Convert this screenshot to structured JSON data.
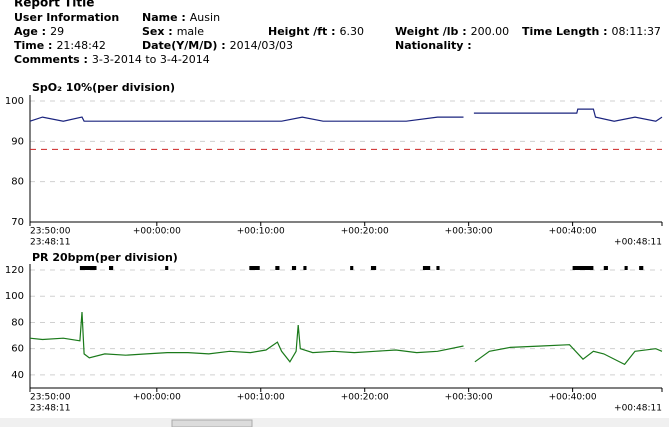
{
  "report": {
    "title": "Report Title",
    "section": "User Information",
    "fields": [
      {
        "label": "Name :",
        "value": "Ausin"
      },
      {
        "label": "Age :",
        "value": "29"
      },
      {
        "label": "Sex :",
        "value": "male"
      },
      {
        "label": "Height /ft :",
        "value": "6.30"
      },
      {
        "label": "Weight /lb :",
        "value": "200.00"
      },
      {
        "label": "Time Length :",
        "value": "08:11:37"
      },
      {
        "label": "Time :",
        "value": "21:48:42"
      },
      {
        "label": "Date(Y/M/D) :",
        "value": "2014/03/03"
      },
      {
        "label": "Nationality :"
      },
      {
        "label": "Comments :",
        "value": "3-3-2014 to 3-4-2014"
      }
    ]
  },
  "chart_data": [
    {
      "type": "line",
      "title": "SpO₂   10%(per division)",
      "x": [
        -12.2,
        -11,
        -9,
        -7.2,
        -7,
        -5,
        -3,
        0,
        3,
        6,
        9,
        12,
        14,
        16,
        18,
        21,
        24,
        27,
        29.5,
        30,
        30.5,
        33,
        36,
        39,
        40.4,
        40.5,
        42,
        42.2,
        44,
        46,
        48,
        48.6
      ],
      "series": [
        {
          "name": "SpO2",
          "color": "#1a237e",
          "values": [
            95,
            96,
            95,
            96,
            95,
            95,
            95,
            95,
            95,
            95,
            95,
            95,
            96,
            95,
            95,
            95,
            95,
            96,
            96,
            null,
            97,
            97,
            97,
            97,
            97,
            98,
            98,
            96,
            95,
            96,
            95,
            96
          ]
        }
      ],
      "alarm_line": 88,
      "alarm_color": "#cc2222",
      "xlim": [
        -12.2,
        48.6
      ],
      "xticks": [
        {
          "value": -12.2,
          "label": "23:50:00"
        },
        {
          "value": 0,
          "label": "+00:00:00"
        },
        {
          "value": 10,
          "label": "+00:10:00"
        },
        {
          "value": 20,
          "label": "+00:20:00"
        },
        {
          "value": 30,
          "label": "+00:30:00"
        },
        {
          "value": 40,
          "label": "+00:40:00"
        },
        {
          "value": 48.6,
          "label": "+00:48:11"
        }
      ],
      "x_start_label": "23:48:11",
      "ylim": [
        70,
        100
      ],
      "yticks": [
        70,
        80,
        90,
        100
      ],
      "grid": true
    },
    {
      "type": "line",
      "title": "PR    20bpm(per division)",
      "x": [
        -12.2,
        -11,
        -9,
        -7.4,
        -7.2,
        -7,
        -6.5,
        -5,
        -3,
        -1,
        1,
        3,
        5,
        7,
        9,
        10.5,
        11.6,
        12,
        12.8,
        13.4,
        13.6,
        13.8,
        15,
        17,
        19,
        21,
        23,
        25,
        27,
        29.5,
        30,
        30.6,
        32,
        34,
        37,
        39.7,
        41,
        42,
        43,
        45,
        46,
        48,
        48.6
      ],
      "series": [
        {
          "name": "PR",
          "color": "#1b7a1b",
          "values": [
            68,
            67,
            68,
            66,
            88,
            56,
            53,
            56,
            55,
            56,
            57,
            57,
            56,
            58,
            57,
            59,
            65,
            58,
            50,
            58,
            78,
            60,
            57,
            58,
            57,
            58,
            59,
            57,
            58,
            62,
            null,
            50,
            58,
            61,
            62,
            63,
            52,
            58,
            56,
            48,
            58,
            60,
            58
          ]
        }
      ],
      "events": [
        [
          -7.4,
          -5.8
        ],
        [
          -4.6,
          -4.2
        ],
        [
          0.8,
          1.1
        ],
        [
          8.9,
          9.9
        ],
        [
          11.4,
          11.8
        ],
        [
          13.0,
          13.4
        ],
        [
          14.1,
          14.4
        ],
        [
          18.6,
          18.9
        ],
        [
          20.6,
          21.1
        ],
        [
          25.6,
          26.3
        ],
        [
          26.9,
          27.2
        ],
        [
          40.0,
          42.0
        ],
        [
          43.0,
          43.4
        ],
        [
          45.0,
          45.3
        ],
        [
          46.4,
          46.8
        ]
      ],
      "xlim": [
        -12.2,
        48.6
      ],
      "xticks": [
        {
          "value": -12.2,
          "label": "23:50:00"
        },
        {
          "value": 0,
          "label": "+00:00:00"
        },
        {
          "value": 10,
          "label": "+00:10:00"
        },
        {
          "value": 20,
          "label": "+00:20:00"
        },
        {
          "value": 30,
          "label": "+00:30:00"
        },
        {
          "value": 40,
          "label": "+00:40:00"
        },
        {
          "value": 48.6,
          "label": "+00:48:11"
        }
      ],
      "x_start_label": "23:48:11",
      "ylim": [
        30,
        120
      ],
      "yticks": [
        40,
        60,
        80,
        100,
        120
      ],
      "grid": true
    }
  ]
}
